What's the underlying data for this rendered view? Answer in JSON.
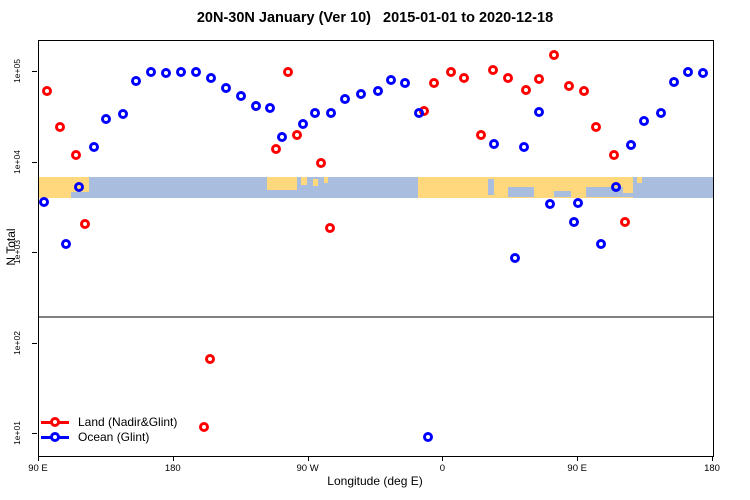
{
  "chart_data": {
    "type": "scatter",
    "title": "20N-30N January (Ver 10)   2015-01-01 to 2020-12-18",
    "xlabel": "Longitude (deg E)",
    "ylabel": "N Total",
    "y_scale": "log",
    "ylim": [
      5.7,
      220000
    ],
    "x_axis_span_deg": [
      90,
      540
    ],
    "grid": false,
    "legend_position": "bottom-left",
    "x_ticks": [
      {
        "deg": 90,
        "label": "90 E"
      },
      {
        "deg": 180,
        "label": "180"
      },
      {
        "deg": 270,
        "label": "90 W"
      },
      {
        "deg": 360,
        "label": "0"
      },
      {
        "deg": 450,
        "label": "90 E"
      },
      {
        "deg": 540,
        "label": "180"
      }
    ],
    "y_ticks": [
      {
        "value": 100000,
        "label": "1e+05"
      },
      {
        "value": 10000,
        "label": "1e+04"
      },
      {
        "value": 1000,
        "label": "1e+03"
      },
      {
        "value": 100,
        "label": "1e+02"
      },
      {
        "value": 10,
        "label": "1e+01"
      }
    ],
    "threshold_line": {
      "n": 195,
      "color": "#808080"
    },
    "map_band": {
      "n_top": 7000,
      "n_bottom": 4100,
      "ocean_color": "#a9bede",
      "land_color": "#ffd87e",
      "land_segments": [
        {
          "d0": 90,
          "d1": 123.4,
          "t": 0,
          "b": 1
        },
        {
          "d0": 242,
          "d1": 262,
          "t": 0,
          "b": 0.62
        },
        {
          "d0": 265,
          "d1": 269,
          "t": 0,
          "b": 0.38
        },
        {
          "d0": 273,
          "d1": 276,
          "t": 0.1,
          "b": 0.45
        },
        {
          "d0": 280,
          "d1": 283,
          "t": 0,
          "b": 0.3
        },
        {
          "d0": 343,
          "d1": 486.7,
          "t": 0,
          "b": 1
        },
        {
          "d0": 489,
          "d1": 492.5,
          "t": 0,
          "b": 0.32
        }
      ],
      "ocean_notches": [
        {
          "d0": 111.4,
          "d1": 123.4,
          "t": 0.74,
          "b": 1
        },
        {
          "d0": 389.5,
          "d1": 394,
          "t": 0.12,
          "b": 0.88
        },
        {
          "d0": 403,
          "d1": 420.5,
          "t": 0.48,
          "b": 1
        },
        {
          "d0": 434,
          "d1": 445.2,
          "t": 0.7,
          "b": 1
        },
        {
          "d0": 455,
          "d1": 480,
          "t": 0.52,
          "b": 1
        },
        {
          "d0": 480,
          "d1": 486.7,
          "t": 0.8,
          "b": 1
        }
      ]
    },
    "series": [
      {
        "name": "Land (Nadir&Glint)",
        "color": "#ff0000",
        "marker": "open-circle",
        "points": [
          [
            95,
            62000
          ],
          [
            104,
            25000
          ],
          [
            115,
            12000
          ],
          [
            121,
            2100
          ],
          [
            248,
            14000
          ],
          [
            256,
            100000
          ],
          [
            262,
            20000
          ],
          [
            278,
            10000
          ],
          [
            284,
            1900
          ],
          [
            347,
            37000
          ],
          [
            354,
            76000
          ],
          [
            365,
            100000
          ],
          [
            374,
            86000
          ],
          [
            385,
            20000
          ],
          [
            393,
            105000
          ],
          [
            403,
            86000
          ],
          [
            415,
            63000
          ],
          [
            424,
            84000
          ],
          [
            434,
            155000
          ],
          [
            444,
            70000
          ],
          [
            454,
            62000
          ],
          [
            462,
            25000
          ],
          [
            474,
            12000
          ],
          [
            481,
            2200
          ],
          [
            204,
            68
          ],
          [
            200,
            12
          ]
        ]
      },
      {
        "name": "Ocean (Glint)",
        "color": "#0000ff",
        "marker": "open-circle",
        "points": [
          [
            93,
            3700
          ],
          [
            108,
            1250
          ],
          [
            117,
            5400
          ],
          [
            127,
            15000
          ],
          [
            135,
            30000
          ],
          [
            146,
            34000
          ],
          [
            155,
            80000
          ],
          [
            165,
            100000
          ],
          [
            175,
            98000
          ],
          [
            185,
            100000
          ],
          [
            195,
            100000
          ],
          [
            205,
            86000
          ],
          [
            215,
            66000
          ],
          [
            225,
            54000
          ],
          [
            235,
            42000
          ],
          [
            244,
            40000
          ],
          [
            252,
            19000
          ],
          [
            266,
            27000
          ],
          [
            274,
            35000
          ],
          [
            285,
            35000
          ],
          [
            294,
            50000
          ],
          [
            305,
            57000
          ],
          [
            316,
            62000
          ],
          [
            325,
            81000
          ],
          [
            334,
            76000
          ],
          [
            344,
            35000
          ],
          [
            394,
            16000
          ],
          [
            414,
            15000
          ],
          [
            424,
            36000
          ],
          [
            431,
            3500
          ],
          [
            447,
            2200
          ],
          [
            450,
            3600
          ],
          [
            465,
            1250
          ],
          [
            475,
            5400
          ],
          [
            485,
            15500
          ],
          [
            494,
            29000
          ],
          [
            505,
            35000
          ],
          [
            514,
            78000
          ],
          [
            523,
            100000
          ],
          [
            533,
            98000
          ],
          [
            350,
            9.3
          ],
          [
            408,
            880
          ]
        ]
      }
    ]
  }
}
